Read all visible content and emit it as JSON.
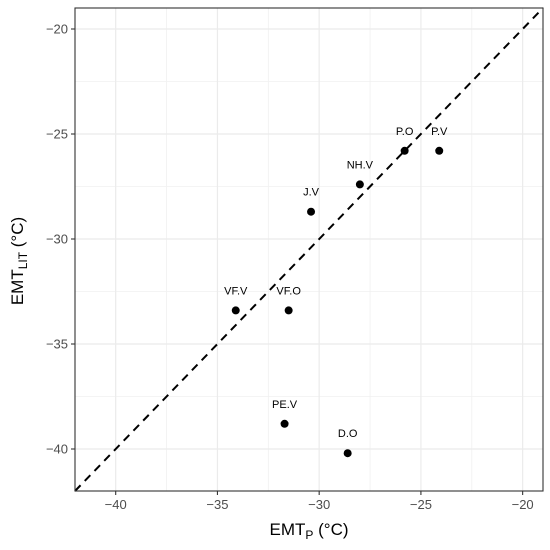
{
  "chart_data": {
    "type": "scatter",
    "xlabel_main": "EMT",
    "xlabel_sub": "P",
    "xlabel_unit": " (°C)",
    "ylabel_main": "EMT",
    "ylabel_sub": "LIT",
    "ylabel_unit": " (°C)",
    "xlim": [
      -42,
      -19
    ],
    "ylim": [
      -42,
      -19
    ],
    "xticks": [
      -40,
      -35,
      -30,
      -25,
      -20
    ],
    "yticks": [
      -40,
      -35,
      -30,
      -25,
      -20
    ],
    "xtick_labels": [
      "−40",
      "−35",
      "−30",
      "−25",
      "−20"
    ],
    "ytick_labels": [
      "−40",
      "−35",
      "−30",
      "−25",
      "−20"
    ],
    "grid": true,
    "reference_line": {
      "type": "identity",
      "style": "dashed"
    },
    "points": [
      {
        "label": "P.O",
        "x": -25.8,
        "y": -25.8
      },
      {
        "label": "P.V",
        "x": -24.1,
        "y": -25.8
      },
      {
        "label": "NH.V",
        "x": -28.0,
        "y": -27.4
      },
      {
        "label": "J.V",
        "x": -30.4,
        "y": -28.7
      },
      {
        "label": "VF.V",
        "x": -34.1,
        "y": -33.4
      },
      {
        "label": "VF.O",
        "x": -31.5,
        "y": -33.4
      },
      {
        "label": "PE.V",
        "x": -31.7,
        "y": -38.8
      },
      {
        "label": "D.O",
        "x": -28.6,
        "y": -40.2
      }
    ]
  }
}
